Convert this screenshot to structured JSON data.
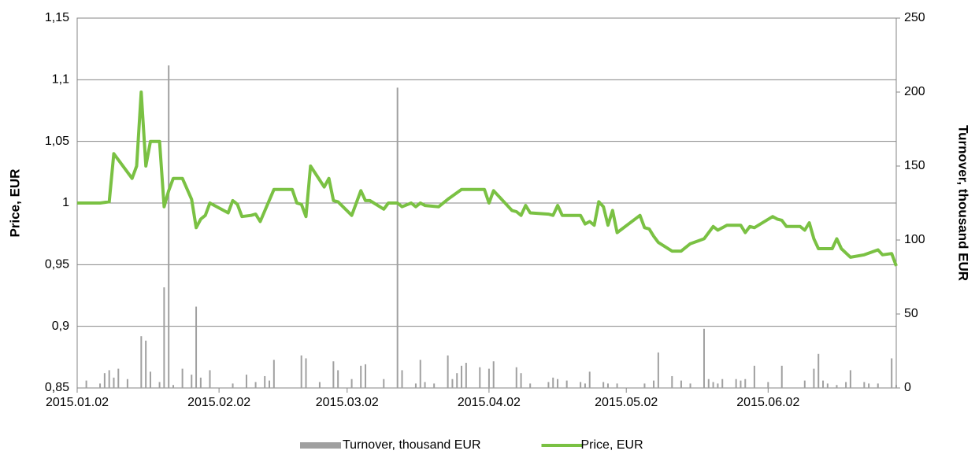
{
  "chart_data": {
    "type": "combo",
    "y_label": "Price, EUR",
    "y2_label": "Turnover, thousand EUR",
    "xlim": [
      "2015.01.02",
      "2015.06.30"
    ],
    "xticks": [
      "2015.01.02",
      "2015.02.02",
      "2015.03.02",
      "2015.04.02",
      "2015.05.02",
      "2015.06.02"
    ],
    "ylim": [
      0.85,
      1.15
    ],
    "yticks": [
      {
        "value": 0.85,
        "label": "0,85"
      },
      {
        "value": 0.9,
        "label": "0,9"
      },
      {
        "value": 0.95,
        "label": "0,95"
      },
      1,
      {
        "value": 1.05,
        "label": "1,05"
      },
      {
        "value": 1.1,
        "label": "1,1"
      },
      {
        "value": 1.15,
        "label": "1,15"
      }
    ],
    "y2lim": [
      0,
      250
    ],
    "y2ticks": [
      0,
      50,
      100,
      150,
      200,
      250
    ],
    "grid": true,
    "legend": "bottom",
    "series": [
      {
        "name": "Turnover, thousand EUR",
        "type": "bar",
        "axis": "y2",
        "color": "#a0a0a0",
        "x": [
          "2015.01.04",
          "2015.01.07",
          "2015.01.08",
          "2015.01.09",
          "2015.01.10",
          "2015.01.11",
          "2015.01.13",
          "2015.01.16",
          "2015.01.17",
          "2015.01.18",
          "2015.01.20",
          "2015.01.21",
          "2015.01.22",
          "2015.01.23",
          "2015.01.25",
          "2015.01.27",
          "2015.01.28",
          "2015.01.29",
          "2015.01.31",
          "2015.02.05",
          "2015.02.08",
          "2015.02.10",
          "2015.02.12",
          "2015.02.13",
          "2015.02.14",
          "2015.02.20",
          "2015.02.21",
          "2015.02.24",
          "2015.02.27",
          "2015.02.28",
          "2015.03.03",
          "2015.03.05",
          "2015.03.06",
          "2015.03.10",
          "2015.03.13",
          "2015.03.14",
          "2015.03.17",
          "2015.03.18",
          "2015.03.19",
          "2015.03.21",
          "2015.03.24",
          "2015.03.25",
          "2015.03.26",
          "2015.03.27",
          "2015.03.28",
          "2015.03.31",
          "2015.04.02",
          "2015.04.03",
          "2015.04.08",
          "2015.04.09",
          "2015.04.11",
          "2015.04.15",
          "2015.04.16",
          "2015.04.17",
          "2015.04.19",
          "2015.04.22",
          "2015.04.23",
          "2015.04.24",
          "2015.04.27",
          "2015.04.28",
          "2015.04.30",
          "2015.05.06",
          "2015.05.08",
          "2015.05.09",
          "2015.05.12",
          "2015.05.14",
          "2015.05.16",
          "2015.05.19",
          "2015.05.20",
          "2015.05.21",
          "2015.05.22",
          "2015.05.23",
          "2015.05.26",
          "2015.05.27",
          "2015.05.28",
          "2015.05.30",
          "2015.06.02",
          "2015.06.05",
          "2015.06.10",
          "2015.06.12",
          "2015.06.13",
          "2015.06.14",
          "2015.06.15",
          "2015.06.17",
          "2015.06.19",
          "2015.06.20",
          "2015.06.23",
          "2015.06.24",
          "2015.06.26",
          "2015.06.29",
          "2015.06.30"
        ],
        "values": [
          5,
          3,
          10,
          12,
          7,
          13,
          6,
          35,
          32,
          11,
          4,
          68,
          218,
          2,
          13,
          9,
          55,
          7,
          12,
          3,
          9,
          4,
          8,
          5,
          19,
          22,
          20,
          4,
          18,
          12,
          6,
          15,
          16,
          6,
          203,
          12,
          3,
          19,
          4,
          3,
          22,
          6,
          10,
          15,
          17,
          14,
          13,
          18,
          14,
          10,
          3,
          4,
          7,
          6,
          5,
          4,
          3,
          11,
          4,
          3,
          3,
          3,
          5,
          24,
          8,
          5,
          3,
          40,
          6,
          4,
          3,
          6,
          6,
          5,
          6,
          15,
          4,
          15,
          5,
          13,
          23,
          5,
          3,
          2,
          4,
          12,
          4,
          3,
          3,
          20,
          2
        ]
      },
      {
        "name": "Price, EUR",
        "type": "line",
        "axis": "y",
        "color": "#7ac143",
        "x": [
          "2015.01.02",
          "2015.01.07",
          "2015.01.09",
          "2015.01.10",
          "2015.01.14",
          "2015.01.15",
          "2015.01.16",
          "2015.01.17",
          "2015.01.18",
          "2015.01.20",
          "2015.01.21",
          "2015.01.22",
          "2015.01.23",
          "2015.01.25",
          "2015.01.27",
          "2015.01.28",
          "2015.01.29",
          "2015.01.30",
          "2015.01.31",
          "2015.02.03",
          "2015.02.04",
          "2015.02.05",
          "2015.02.06",
          "2015.02.07",
          "2015.02.09",
          "2015.02.10",
          "2015.02.11",
          "2015.02.14",
          "2015.02.18",
          "2015.02.19",
          "2015.02.20",
          "2015.02.21",
          "2015.02.22",
          "2015.02.25",
          "2015.02.26",
          "2015.02.27",
          "2015.02.28",
          "2015.03.03",
          "2015.03.05",
          "2015.03.06",
          "2015.03.07",
          "2015.03.10",
          "2015.03.11",
          "2015.03.13",
          "2015.03.14",
          "2015.03.16",
          "2015.03.17",
          "2015.03.18",
          "2015.03.19",
          "2015.03.22",
          "2015.03.24",
          "2015.03.27",
          "2015.04.01",
          "2015.04.02",
          "2015.04.03",
          "2015.04.07",
          "2015.04.08",
          "2015.04.09",
          "2015.04.10",
          "2015.04.11",
          "2015.04.15",
          "2015.04.16",
          "2015.04.17",
          "2015.04.18",
          "2015.04.22",
          "2015.04.23",
          "2015.04.24",
          "2015.04.25",
          "2015.04.26",
          "2015.04.27",
          "2015.04.28",
          "2015.04.29",
          "2015.04.30",
          "2015.05.05",
          "2015.05.06",
          "2015.05.07",
          "2015.05.08",
          "2015.05.09",
          "2015.05.12",
          "2015.05.14",
          "2015.05.16",
          "2015.05.19",
          "2015.05.21",
          "2015.05.22",
          "2015.05.24",
          "2015.05.27",
          "2015.05.28",
          "2015.05.29",
          "2015.05.30",
          "2015.06.03",
          "2015.06.04",
          "2015.06.05",
          "2015.06.06",
          "2015.06.09",
          "2015.06.10",
          "2015.06.11",
          "2015.06.12",
          "2015.06.13",
          "2015.06.16",
          "2015.06.17",
          "2015.06.18",
          "2015.06.20",
          "2015.06.23",
          "2015.06.26",
          "2015.06.27",
          "2015.06.29",
          "2015.06.30"
        ],
        "values": [
          1.0,
          1.0,
          1.001,
          1.04,
          1.02,
          1.03,
          1.09,
          1.03,
          1.05,
          1.05,
          0.997,
          1.01,
          1.02,
          1.02,
          1.003,
          0.98,
          0.987,
          0.99,
          1.0,
          0.994,
          0.992,
          1.002,
          0.999,
          0.989,
          0.99,
          0.991,
          0.985,
          1.011,
          1.011,
          1.0,
          0.999,
          0.989,
          1.03,
          1.013,
          1.02,
          1.002,
          1.001,
          0.99,
          1.01,
          1.002,
          1.002,
          0.995,
          1.0,
          1.0,
          0.997,
          1.0,
          0.997,
          1.0,
          0.998,
          0.997,
          1.003,
          1.011,
          1.011,
          1.0,
          1.01,
          0.994,
          0.993,
          0.99,
          0.998,
          0.992,
          0.991,
          0.99,
          0.998,
          0.99,
          0.99,
          0.983,
          0.985,
          0.982,
          1.001,
          0.997,
          0.982,
          0.994,
          0.976,
          0.99,
          0.98,
          0.979,
          0.973,
          0.968,
          0.961,
          0.961,
          0.967,
          0.971,
          0.981,
          0.978,
          0.982,
          0.982,
          0.976,
          0.981,
          0.98,
          0.989,
          0.987,
          0.986,
          0.981,
          0.981,
          0.978,
          0.984,
          0.971,
          0.963,
          0.963,
          0.971,
          0.963,
          0.956,
          0.958,
          0.962,
          0.958,
          0.959,
          0.949
        ]
      }
    ]
  }
}
